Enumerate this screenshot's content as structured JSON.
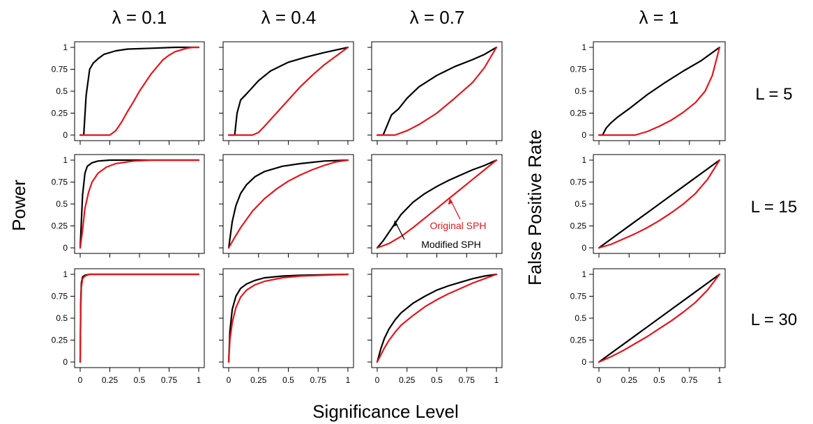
{
  "figure": {
    "column_titles": [
      "λ = 0.1",
      "λ = 0.4",
      "λ = 0.7",
      "λ = 1"
    ],
    "row_labels": [
      "L = 5",
      "L = 15",
      "L = 30"
    ],
    "ylabel_power": "Power",
    "ylabel_fpr": "False Positive Rate",
    "xlabel": "Significance Level",
    "annotations": {
      "original": "Original SPH",
      "modified": "Modified SPH"
    },
    "x_ticks": [
      "0",
      "0.25",
      "0.5",
      "0.75",
      "1"
    ],
    "y_ticks": [
      "0",
      "0.25",
      "0.5",
      "0.75",
      "1"
    ]
  },
  "colors": {
    "modified": "#000000",
    "original": "#e8141b"
  },
  "chart_data": {
    "type": "line",
    "xlabel": "Significance Level",
    "xlim": [
      0,
      1
    ],
    "ylim": [
      0,
      1
    ],
    "series_names": [
      "Modified SPH",
      "Original SPH"
    ],
    "panels": [
      {
        "lambda": "λ = 0.1",
        "L": "L = 5",
        "ylabel": "Power",
        "series": [
          {
            "name": "Modified SPH",
            "x": [
              0,
              0.03,
              0.05,
              0.08,
              0.11,
              0.15,
              0.2,
              0.3,
              0.4,
              0.6,
              0.8,
              1
            ],
            "y": [
              0,
              0,
              0.45,
              0.75,
              0.82,
              0.87,
              0.92,
              0.96,
              0.98,
              0.99,
              1,
              1
            ]
          },
          {
            "name": "Original SPH",
            "x": [
              0,
              0.25,
              0.3,
              0.35,
              0.4,
              0.45,
              0.5,
              0.55,
              0.6,
              0.65,
              0.7,
              0.75,
              0.8,
              0.85,
              0.9,
              0.95,
              1
            ],
            "y": [
              0,
              0,
              0.05,
              0.15,
              0.27,
              0.38,
              0.5,
              0.6,
              0.7,
              0.78,
              0.86,
              0.91,
              0.95,
              0.97,
              0.99,
              1,
              1
            ]
          }
        ]
      },
      {
        "lambda": "λ = 0.4",
        "L": "L = 5",
        "ylabel": "Power",
        "series": [
          {
            "name": "Modified SPH",
            "x": [
              0,
              0.05,
              0.07,
              0.1,
              0.15,
              0.25,
              0.35,
              0.5,
              0.65,
              0.8,
              0.9,
              1
            ],
            "y": [
              0,
              0,
              0.25,
              0.4,
              0.47,
              0.62,
              0.73,
              0.83,
              0.89,
              0.94,
              0.97,
              1
            ]
          },
          {
            "name": "Original SPH",
            "x": [
              0,
              0.2,
              0.25,
              0.3,
              0.4,
              0.5,
              0.6,
              0.7,
              0.8,
              0.9,
              1
            ],
            "y": [
              0,
              0,
              0.03,
              0.1,
              0.25,
              0.4,
              0.55,
              0.68,
              0.8,
              0.9,
              1
            ]
          }
        ]
      },
      {
        "lambda": "λ = 0.7",
        "L": "L = 5",
        "ylabel": "Power",
        "series": [
          {
            "name": "Modified SPH",
            "x": [
              0,
              0.05,
              0.08,
              0.12,
              0.18,
              0.25,
              0.35,
              0.5,
              0.65,
              0.8,
              0.9,
              1
            ],
            "y": [
              0,
              0,
              0.1,
              0.23,
              0.3,
              0.42,
              0.55,
              0.68,
              0.78,
              0.86,
              0.92,
              1
            ]
          },
          {
            "name": "Original SPH",
            "x": [
              0,
              0.15,
              0.25,
              0.35,
              0.5,
              0.65,
              0.8,
              0.9,
              1
            ],
            "y": [
              0,
              0,
              0.05,
              0.12,
              0.25,
              0.42,
              0.6,
              0.77,
              1
            ]
          }
        ]
      },
      {
        "lambda": "λ = 1",
        "L": "L = 5",
        "ylabel": "False Positive Rate",
        "series": [
          {
            "name": "Modified SPH",
            "x": [
              0,
              0.03,
              0.06,
              0.1,
              0.15,
              0.25,
              0.4,
              0.55,
              0.7,
              0.85,
              1
            ],
            "y": [
              0,
              0,
              0.08,
              0.14,
              0.2,
              0.3,
              0.46,
              0.6,
              0.73,
              0.85,
              1
            ]
          },
          {
            "name": "Original SPH",
            "x": [
              0,
              0.3,
              0.4,
              0.5,
              0.6,
              0.7,
              0.8,
              0.88,
              0.94,
              1
            ],
            "y": [
              0,
              0,
              0.04,
              0.1,
              0.17,
              0.26,
              0.37,
              0.5,
              0.68,
              1
            ]
          }
        ]
      },
      {
        "lambda": "λ = 0.1",
        "L": "L = 15",
        "ylabel": "Power",
        "series": [
          {
            "name": "Modified SPH",
            "x": [
              0,
              0.01,
              0.02,
              0.04,
              0.06,
              0.1,
              0.15,
              0.25,
              0.5,
              1
            ],
            "y": [
              0,
              0.3,
              0.6,
              0.85,
              0.93,
              0.97,
              0.99,
              1,
              1,
              1
            ]
          },
          {
            "name": "Original SPH",
            "x": [
              0,
              0.02,
              0.04,
              0.07,
              0.1,
              0.15,
              0.22,
              0.3,
              0.45,
              0.6,
              1
            ],
            "y": [
              0,
              0.2,
              0.45,
              0.63,
              0.75,
              0.85,
              0.92,
              0.96,
              0.99,
              1,
              1
            ]
          }
        ]
      },
      {
        "lambda": "λ = 0.4",
        "L": "L = 15",
        "ylabel": "Power",
        "series": [
          {
            "name": "Modified SPH",
            "x": [
              0,
              0.03,
              0.06,
              0.1,
              0.15,
              0.22,
              0.3,
              0.45,
              0.6,
              0.8,
              1
            ],
            "y": [
              0,
              0.3,
              0.48,
              0.62,
              0.72,
              0.81,
              0.87,
              0.93,
              0.96,
              0.99,
              1
            ]
          },
          {
            "name": "Original SPH",
            "x": [
              0,
              0.05,
              0.1,
              0.2,
              0.3,
              0.4,
              0.5,
              0.6,
              0.7,
              0.8,
              0.9,
              1
            ],
            "y": [
              0,
              0.12,
              0.23,
              0.42,
              0.56,
              0.67,
              0.76,
              0.83,
              0.89,
              0.94,
              0.98,
              1
            ]
          }
        ]
      },
      {
        "lambda": "λ = 0.7",
        "L": "L = 15",
        "ylabel": "Power",
        "series": [
          {
            "name": "Modified SPH",
            "x": [
              0,
              0.05,
              0.1,
              0.15,
              0.2,
              0.3,
              0.4,
              0.5,
              0.6,
              0.7,
              0.8,
              0.9,
              1
            ],
            "y": [
              0,
              0.08,
              0.18,
              0.28,
              0.38,
              0.52,
              0.62,
              0.7,
              0.77,
              0.83,
              0.89,
              0.94,
              1
            ]
          },
          {
            "name": "Original SPH",
            "x": [
              0,
              0.1,
              0.2,
              0.3,
              0.4,
              0.5,
              0.6,
              0.7,
              0.8,
              0.9,
              1
            ],
            "y": [
              0,
              0.05,
              0.13,
              0.23,
              0.34,
              0.45,
              0.56,
              0.67,
              0.78,
              0.89,
              1
            ]
          }
        ]
      },
      {
        "lambda": "λ = 1",
        "L": "L = 15",
        "ylabel": "False Positive Rate",
        "series": [
          {
            "name": "Modified SPH",
            "x": [
              0,
              0.1,
              0.2,
              0.3,
              0.4,
              0.5,
              0.6,
              0.7,
              0.8,
              0.9,
              1
            ],
            "y": [
              0,
              0.1,
              0.2,
              0.3,
              0.4,
              0.5,
              0.6,
              0.7,
              0.8,
              0.9,
              1
            ]
          },
          {
            "name": "Original SPH",
            "x": [
              0,
              0.1,
              0.2,
              0.3,
              0.4,
              0.5,
              0.6,
              0.7,
              0.8,
              0.9,
              1
            ],
            "y": [
              0,
              0.04,
              0.1,
              0.16,
              0.23,
              0.31,
              0.4,
              0.5,
              0.62,
              0.78,
              1
            ]
          }
        ]
      },
      {
        "lambda": "λ = 0.1",
        "L": "L = 30",
        "ylabel": "Power",
        "series": [
          {
            "name": "Modified SPH",
            "x": [
              0,
              0.005,
              0.01,
              0.02,
              0.04,
              0.08,
              0.2,
              1
            ],
            "y": [
              0,
              0.7,
              0.9,
              0.97,
              0.99,
              1,
              1,
              1
            ]
          },
          {
            "name": "Original SPH",
            "x": [
              0,
              0.005,
              0.01,
              0.02,
              0.04,
              0.08,
              0.2,
              1
            ],
            "y": [
              0,
              0.6,
              0.85,
              0.95,
              0.98,
              1,
              1,
              1
            ]
          }
        ]
      },
      {
        "lambda": "λ = 0.4",
        "L": "L = 30",
        "ylabel": "Power",
        "series": [
          {
            "name": "Modified SPH",
            "x": [
              0,
              0.01,
              0.03,
              0.06,
              0.1,
              0.15,
              0.22,
              0.3,
              0.45,
              0.6,
              1
            ],
            "y": [
              0,
              0.35,
              0.6,
              0.75,
              0.84,
              0.89,
              0.93,
              0.96,
              0.98,
              0.99,
              1
            ]
          },
          {
            "name": "Original SPH",
            "x": [
              0,
              0.01,
              0.03,
              0.06,
              0.1,
              0.15,
              0.22,
              0.3,
              0.45,
              0.6,
              0.8,
              1
            ],
            "y": [
              0,
              0.25,
              0.45,
              0.62,
              0.74,
              0.82,
              0.88,
              0.92,
              0.96,
              0.98,
              0.99,
              1
            ]
          }
        ]
      },
      {
        "lambda": "λ = 0.7",
        "L": "L = 30",
        "ylabel": "Power",
        "series": [
          {
            "name": "Modified SPH",
            "x": [
              0,
              0.03,
              0.06,
              0.1,
              0.15,
              0.2,
              0.3,
              0.4,
              0.5,
              0.6,
              0.7,
              0.8,
              0.9,
              1
            ],
            "y": [
              0,
              0.15,
              0.27,
              0.38,
              0.48,
              0.56,
              0.67,
              0.75,
              0.82,
              0.87,
              0.91,
              0.95,
              0.98,
              1
            ]
          },
          {
            "name": "Original SPH",
            "x": [
              0,
              0.03,
              0.06,
              0.1,
              0.15,
              0.2,
              0.3,
              0.4,
              0.5,
              0.6,
              0.7,
              0.8,
              0.9,
              1
            ],
            "y": [
              0,
              0.08,
              0.16,
              0.25,
              0.34,
              0.42,
              0.53,
              0.63,
              0.71,
              0.78,
              0.84,
              0.9,
              0.95,
              1
            ]
          }
        ]
      },
      {
        "lambda": "λ = 1",
        "L": "L = 30",
        "ylabel": "False Positive Rate",
        "series": [
          {
            "name": "Modified SPH",
            "x": [
              0,
              0.1,
              0.2,
              0.3,
              0.4,
              0.5,
              0.6,
              0.7,
              0.8,
              0.9,
              1
            ],
            "y": [
              0,
              0.1,
              0.2,
              0.3,
              0.4,
              0.5,
              0.6,
              0.7,
              0.8,
              0.9,
              1
            ]
          },
          {
            "name": "Original SPH",
            "x": [
              0,
              0.1,
              0.2,
              0.3,
              0.4,
              0.5,
              0.6,
              0.7,
              0.8,
              0.9,
              1
            ],
            "y": [
              0,
              0.06,
              0.13,
              0.21,
              0.29,
              0.38,
              0.47,
              0.57,
              0.68,
              0.82,
              1
            ]
          }
        ]
      }
    ]
  }
}
